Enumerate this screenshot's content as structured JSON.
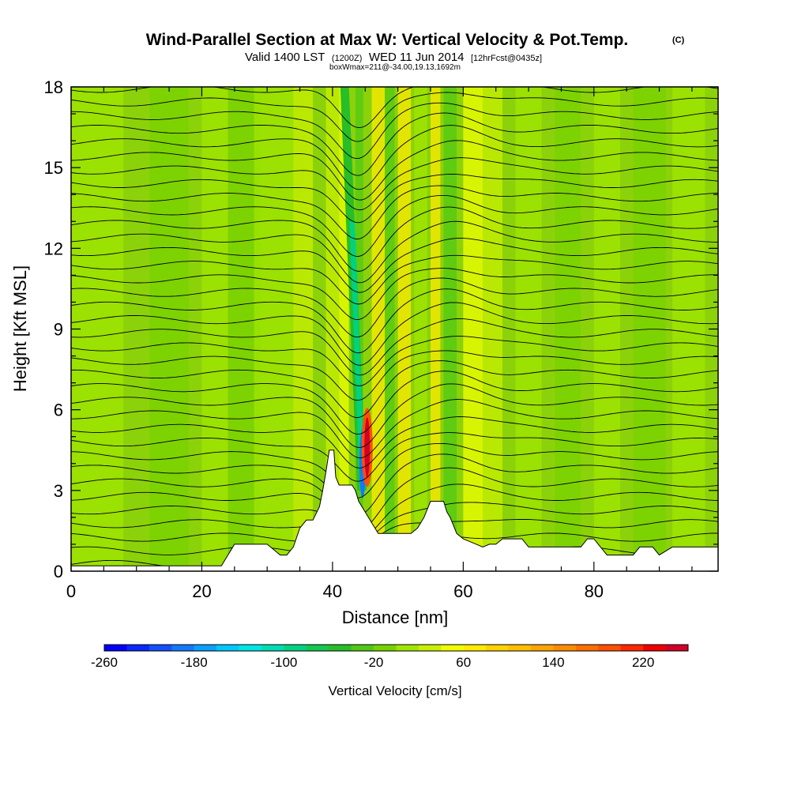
{
  "title": {
    "main": "Wind-Parallel Section at Max W: Vertical Velocity & Pot.Temp.",
    "copyright": "(C)",
    "valid_prefix": "Valid 1400 LST",
    "valid_z": "(1200Z)",
    "valid_date": "WED 11 Jun 2014",
    "forecast_tag": "[12hrFcst@0435z]",
    "box_info": "boxWmax=211@-34.00,19.13,1692m"
  },
  "chart_data": {
    "type": "heatmap",
    "xlabel": "Distance [nm]",
    "ylabel": "Height [Kft MSL]",
    "xlim": [
      0,
      99
    ],
    "ylim": [
      0,
      18
    ],
    "xticks": [
      0,
      20,
      40,
      60,
      80
    ],
    "yticks": [
      0,
      3,
      6,
      9,
      12,
      15,
      18
    ],
    "colorbar": {
      "title": "Vertical Velocity [cm/s]",
      "min": -260,
      "max": 260,
      "step": 20,
      "tick_labels": [
        "-260",
        "-180",
        "-100",
        "-20",
        "60",
        "140",
        "220"
      ],
      "tick_values": [
        -260,
        -180,
        -100,
        -20,
        60,
        140,
        220
      ],
      "colors": [
        "#0000ff",
        "#0a28ff",
        "#1450ff",
        "#1478ff",
        "#0aa0ff",
        "#00c8ff",
        "#00e6e6",
        "#00dcb4",
        "#00d282",
        "#14c850",
        "#28be28",
        "#50c814",
        "#78d200",
        "#a0e600",
        "#c8f000",
        "#f0ff00",
        "#ffeb00",
        "#ffd200",
        "#ffbe00",
        "#ffa500",
        "#ff8c00",
        "#ff6e00",
        "#ff5000",
        "#ff2800",
        "#f00000",
        "#d20028"
      ]
    },
    "terrain_kft": [
      [
        0,
        0.2
      ],
      [
        5,
        0.2
      ],
      [
        10,
        0.2
      ],
      [
        15,
        0.2
      ],
      [
        20,
        0.2
      ],
      [
        23,
        0.2
      ],
      [
        23.5,
        0.4
      ],
      [
        24,
        0.6
      ],
      [
        24.5,
        0.8
      ],
      [
        25,
        1.0
      ],
      [
        27,
        1.0
      ],
      [
        28,
        1.0
      ],
      [
        29,
        1.0
      ],
      [
        30,
        1.0
      ],
      [
        31,
        0.8
      ],
      [
        32,
        0.6
      ],
      [
        33,
        0.6
      ],
      [
        34,
        0.9
      ],
      [
        35,
        1.6
      ],
      [
        36,
        1.9
      ],
      [
        37,
        1.9
      ],
      [
        38,
        2.4
      ],
      [
        38.5,
        3.0
      ],
      [
        39,
        3.7
      ],
      [
        39.5,
        4.5
      ],
      [
        40.2,
        4.5
      ],
      [
        40.5,
        3.5
      ],
      [
        41,
        3.2
      ],
      [
        42,
        3.2
      ],
      [
        43,
        3.2
      ],
      [
        43.5,
        3.0
      ],
      [
        44,
        2.6
      ],
      [
        45,
        2.2
      ],
      [
        46,
        1.8
      ],
      [
        46.5,
        1.6
      ],
      [
        47,
        1.4
      ],
      [
        48,
        1.4
      ],
      [
        49,
        1.4
      ],
      [
        50,
        1.4
      ],
      [
        51,
        1.4
      ],
      [
        52,
        1.4
      ],
      [
        53,
        1.6
      ],
      [
        54,
        2.0
      ],
      [
        55,
        2.6
      ],
      [
        56,
        2.6
      ],
      [
        57,
        2.6
      ],
      [
        57.5,
        2.2
      ],
      [
        58,
        2.0
      ],
      [
        58.5,
        1.7
      ],
      [
        59,
        1.4
      ],
      [
        60,
        1.2
      ],
      [
        62,
        1.0
      ],
      [
        63,
        0.9
      ],
      [
        64,
        1.0
      ],
      [
        65,
        1.0
      ],
      [
        66,
        1.2
      ],
      [
        67,
        1.2
      ],
      [
        68,
        1.2
      ],
      [
        69,
        1.2
      ],
      [
        70,
        0.9
      ],
      [
        72,
        0.9
      ],
      [
        74,
        0.9
      ],
      [
        76,
        0.9
      ],
      [
        78,
        0.9
      ],
      [
        79,
        1.2
      ],
      [
        80,
        1.2
      ],
      [
        81,
        0.9
      ],
      [
        82,
        0.6
      ],
      [
        84,
        0.6
      ],
      [
        86,
        0.6
      ],
      [
        87,
        0.9
      ],
      [
        88,
        0.9
      ],
      [
        89,
        0.9
      ],
      [
        90,
        0.6
      ],
      [
        92,
        0.9
      ],
      [
        94,
        0.9
      ],
      [
        96,
        0.9
      ],
      [
        99,
        0.9
      ]
    ],
    "theta_isentrope_count": 36
  }
}
